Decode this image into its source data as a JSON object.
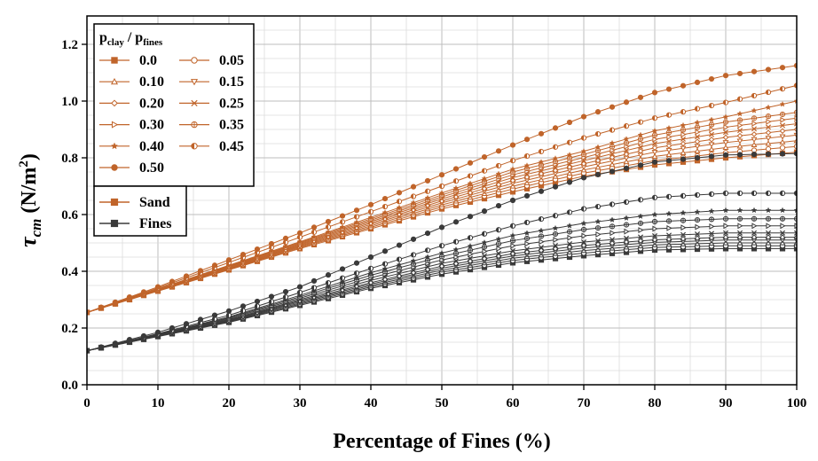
{
  "chart_data": {
    "type": "line",
    "xlabel": "Percentage of Fines (%)",
    "ylabel": {
      "main": "τ",
      "sub": "cm",
      "unit_pre": " (N/m",
      "unit_sup": "2",
      "unit_post": ")"
    },
    "xlim": [
      0,
      100
    ],
    "ylim": [
      0,
      1.3
    ],
    "x_ticks": [
      "0",
      "10",
      "20",
      "30",
      "40",
      "50",
      "60",
      "70",
      "80",
      "90",
      "100"
    ],
    "y_ticks": [
      "0.0",
      "0.2",
      "0.4",
      "0.6",
      "0.8",
      "1.0",
      "1.2"
    ],
    "grid": true,
    "legend": {
      "placement": "top-left",
      "title": {
        "p1": "p",
        "s1": "clay",
        "mid": " / p",
        "s2": "fines"
      },
      "ratio_entries": [
        {
          "label": "0.0",
          "marker": "square-filled"
        },
        {
          "label": "0.05",
          "marker": "circle-open"
        },
        {
          "label": "0.10",
          "marker": "triangle-up"
        },
        {
          "label": "0.15",
          "marker": "triangle-down"
        },
        {
          "label": "0.20",
          "marker": "diamond"
        },
        {
          "label": "0.25",
          "marker": "x"
        },
        {
          "label": "0.30",
          "marker": "triangle-right"
        },
        {
          "label": "0.35",
          "marker": "circle-plus"
        },
        {
          "label": "0.40",
          "marker": "star"
        },
        {
          "label": "0.45",
          "marker": "circle-half"
        },
        {
          "label": "0.50",
          "marker": "circle-filled"
        }
      ],
      "group_entries": [
        {
          "label": "Sand",
          "color": "#c0642a"
        },
        {
          "label": "Fines",
          "color": "#3a3a3a"
        }
      ]
    },
    "colors": {
      "sand": "#c0642a",
      "fines": "#3a3a3a"
    },
    "x": [
      0,
      10,
      20,
      30,
      40,
      50,
      60,
      70,
      80,
      90,
      100
    ],
    "series": [
      {
        "name": "Sand 0.0",
        "group": "Sand",
        "ratio": "0.0",
        "marker": "square-filled",
        "values": [
          0.255,
          0.33,
          0.405,
          0.48,
          0.55,
          0.62,
          0.68,
          0.735,
          0.775,
          0.8,
          0.82
        ]
      },
      {
        "name": "Sand 0.05",
        "group": "Sand",
        "ratio": "0.05",
        "marker": "circle-open",
        "values": [
          0.255,
          0.331,
          0.407,
          0.483,
          0.555,
          0.627,
          0.69,
          0.746,
          0.79,
          0.818,
          0.84
        ]
      },
      {
        "name": "Sand 0.10",
        "group": "Sand",
        "ratio": "0.10",
        "marker": "triangle-up",
        "values": [
          0.255,
          0.332,
          0.409,
          0.486,
          0.56,
          0.634,
          0.7,
          0.757,
          0.805,
          0.836,
          0.86
        ]
      },
      {
        "name": "Sand 0.15",
        "group": "Sand",
        "ratio": "0.15",
        "marker": "triangle-down",
        "values": [
          0.255,
          0.333,
          0.411,
          0.489,
          0.565,
          0.641,
          0.71,
          0.768,
          0.82,
          0.854,
          0.88
        ]
      },
      {
        "name": "Sand 0.20",
        "group": "Sand",
        "ratio": "0.20",
        "marker": "diamond",
        "values": [
          0.255,
          0.334,
          0.413,
          0.492,
          0.57,
          0.648,
          0.72,
          0.779,
          0.835,
          0.872,
          0.9
        ]
      },
      {
        "name": "Sand 0.25",
        "group": "Sand",
        "ratio": "0.25",
        "marker": "x",
        "values": [
          0.255,
          0.335,
          0.415,
          0.495,
          0.575,
          0.655,
          0.73,
          0.79,
          0.85,
          0.89,
          0.92
        ]
      },
      {
        "name": "Sand 0.30",
        "group": "Sand",
        "ratio": "0.30",
        "marker": "triangle-right",
        "values": [
          0.255,
          0.336,
          0.417,
          0.498,
          0.58,
          0.662,
          0.74,
          0.801,
          0.865,
          0.908,
          0.94
        ]
      },
      {
        "name": "Sand 0.35",
        "group": "Sand",
        "ratio": "0.35",
        "marker": "circle-plus",
        "values": [
          0.255,
          0.337,
          0.419,
          0.501,
          0.585,
          0.669,
          0.75,
          0.812,
          0.88,
          0.926,
          0.96
        ]
      },
      {
        "name": "Sand 0.40",
        "group": "Sand",
        "ratio": "0.40",
        "marker": "star",
        "values": [
          0.255,
          0.338,
          0.421,
          0.504,
          0.59,
          0.676,
          0.76,
          0.823,
          0.895,
          0.944,
          1.0
        ]
      },
      {
        "name": "Sand 0.45",
        "group": "Sand",
        "ratio": "0.45",
        "marker": "circle-half",
        "values": [
          0.255,
          0.341,
          0.431,
          0.52,
          0.61,
          0.7,
          0.79,
          0.87,
          0.94,
          0.995,
          1.055
        ]
      },
      {
        "name": "Sand 0.50",
        "group": "Sand",
        "ratio": "0.50",
        "marker": "circle-filled",
        "values": [
          0.255,
          0.345,
          0.44,
          0.535,
          0.635,
          0.74,
          0.845,
          0.945,
          1.03,
          1.09,
          1.125
        ]
      },
      {
        "name": "Fines 0.0",
        "group": "Fines",
        "ratio": "0.0",
        "marker": "square-filled",
        "values": [
          0.12,
          0.17,
          0.22,
          0.28,
          0.34,
          0.39,
          0.43,
          0.455,
          0.475,
          0.48,
          0.48
        ]
      },
      {
        "name": "Fines 0.05",
        "group": "Fines",
        "ratio": "0.05",
        "marker": "circle-open",
        "values": [
          0.12,
          0.171,
          0.222,
          0.284,
          0.345,
          0.397,
          0.438,
          0.464,
          0.484,
          0.49,
          0.49
        ]
      },
      {
        "name": "Fines 0.10",
        "group": "Fines",
        "ratio": "0.10",
        "marker": "triangle-up",
        "values": [
          0.12,
          0.172,
          0.224,
          0.288,
          0.35,
          0.404,
          0.446,
          0.473,
          0.493,
          0.5,
          0.5
        ]
      },
      {
        "name": "Fines 0.15",
        "group": "Fines",
        "ratio": "0.15",
        "marker": "triangle-down",
        "values": [
          0.12,
          0.173,
          0.226,
          0.292,
          0.355,
          0.411,
          0.454,
          0.482,
          0.502,
          0.51,
          0.51
        ]
      },
      {
        "name": "Fines 0.20",
        "group": "Fines",
        "ratio": "0.20",
        "marker": "diamond",
        "values": [
          0.12,
          0.174,
          0.228,
          0.296,
          0.36,
          0.418,
          0.462,
          0.491,
          0.511,
          0.52,
          0.52
        ]
      },
      {
        "name": "Fines 0.25",
        "group": "Fines",
        "ratio": "0.25",
        "marker": "x",
        "values": [
          0.12,
          0.175,
          0.23,
          0.3,
          0.368,
          0.428,
          0.472,
          0.503,
          0.525,
          0.535,
          0.535
        ]
      },
      {
        "name": "Fines 0.30",
        "group": "Fines",
        "ratio": "0.30",
        "marker": "triangle-right",
        "values": [
          0.12,
          0.176,
          0.233,
          0.305,
          0.377,
          0.44,
          0.49,
          0.525,
          0.55,
          0.56,
          0.56
        ]
      },
      {
        "name": "Fines 0.35",
        "group": "Fines",
        "ratio": "0.35",
        "marker": "circle-plus",
        "values": [
          0.12,
          0.177,
          0.236,
          0.31,
          0.386,
          0.452,
          0.508,
          0.547,
          0.575,
          0.585,
          0.585
        ]
      },
      {
        "name": "Fines 0.40",
        "group": "Fines",
        "ratio": "0.40",
        "marker": "star",
        "values": [
          0.12,
          0.178,
          0.239,
          0.315,
          0.395,
          0.464,
          0.526,
          0.569,
          0.6,
          0.615,
          0.615
        ]
      },
      {
        "name": "Fines 0.45",
        "group": "Fines",
        "ratio": "0.45",
        "marker": "circle-half",
        "values": [
          0.12,
          0.18,
          0.245,
          0.325,
          0.41,
          0.49,
          0.56,
          0.62,
          0.66,
          0.675,
          0.675
        ]
      },
      {
        "name": "Fines 0.50",
        "group": "Fines",
        "ratio": "0.50",
        "marker": "circle-filled",
        "values": [
          0.12,
          0.185,
          0.26,
          0.345,
          0.45,
          0.555,
          0.65,
          0.73,
          0.785,
          0.81,
          0.815
        ]
      }
    ]
  }
}
